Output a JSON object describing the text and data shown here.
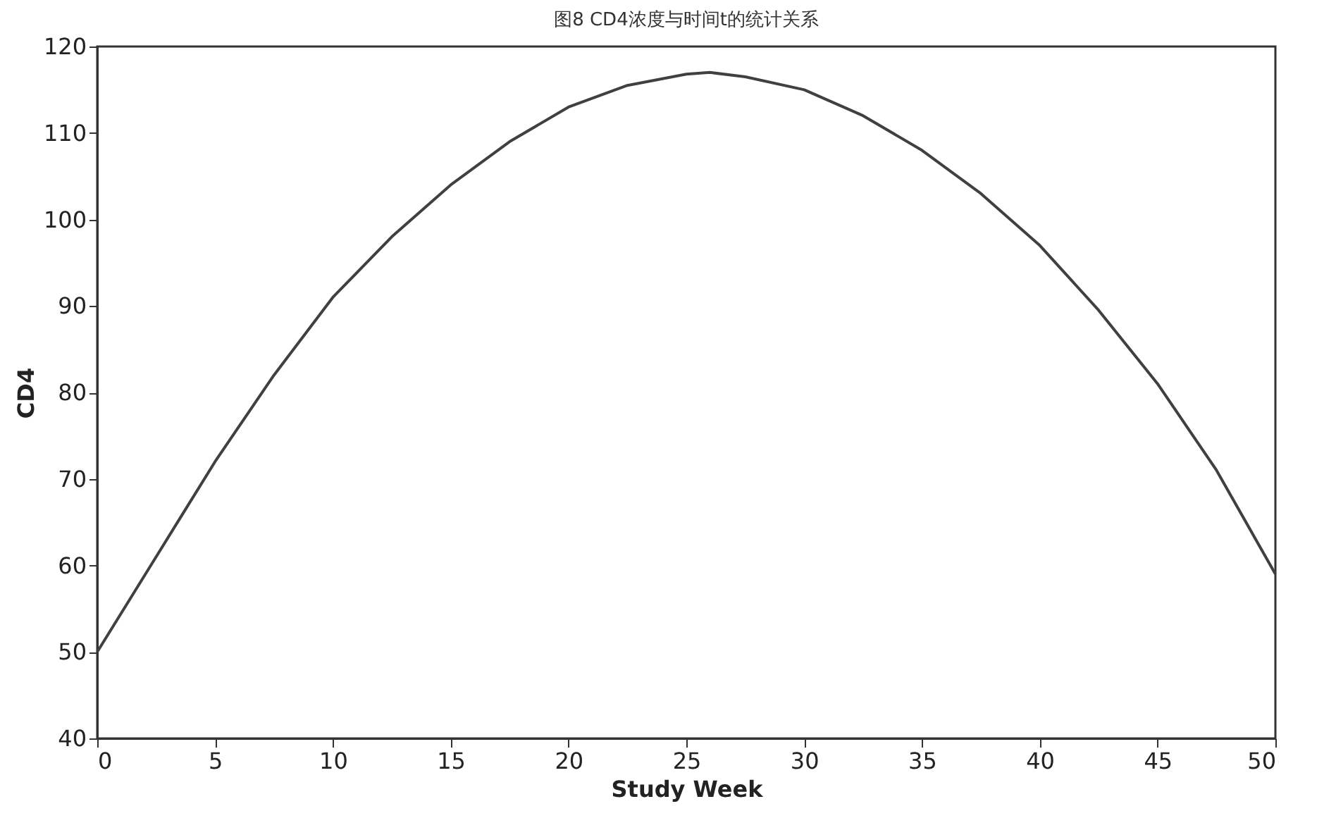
{
  "chart_data": {
    "type": "line",
    "title": "图8    CD4浓度与时间t的统计关系",
    "xlabel": "Study Week",
    "ylabel": "CD4",
    "x": [
      0,
      2.5,
      5,
      7.5,
      10,
      12.5,
      15,
      17.5,
      20,
      22.5,
      25,
      26,
      27.5,
      30,
      32.5,
      35,
      37.5,
      40,
      42.5,
      45,
      47.5,
      50
    ],
    "series": [
      {
        "color": "#404040",
        "values": [
          50,
          61,
          72,
          82,
          91,
          98,
          104,
          109,
          113,
          115.5,
          116.8,
          117,
          116.5,
          115,
          112,
          108,
          103,
          97,
          89.5,
          81,
          71,
          59
        ]
      }
    ],
    "xlim": [
      0,
      50
    ],
    "ylim": [
      40,
      120
    ],
    "xticks": [
      0,
      5,
      10,
      15,
      20,
      25,
      30,
      35,
      40,
      45,
      50
    ],
    "yticks": [
      40,
      50,
      60,
      70,
      80,
      90,
      100,
      110,
      120
    ],
    "grid": false,
    "legend": false,
    "marker": "none",
    "line_style": "solid"
  }
}
